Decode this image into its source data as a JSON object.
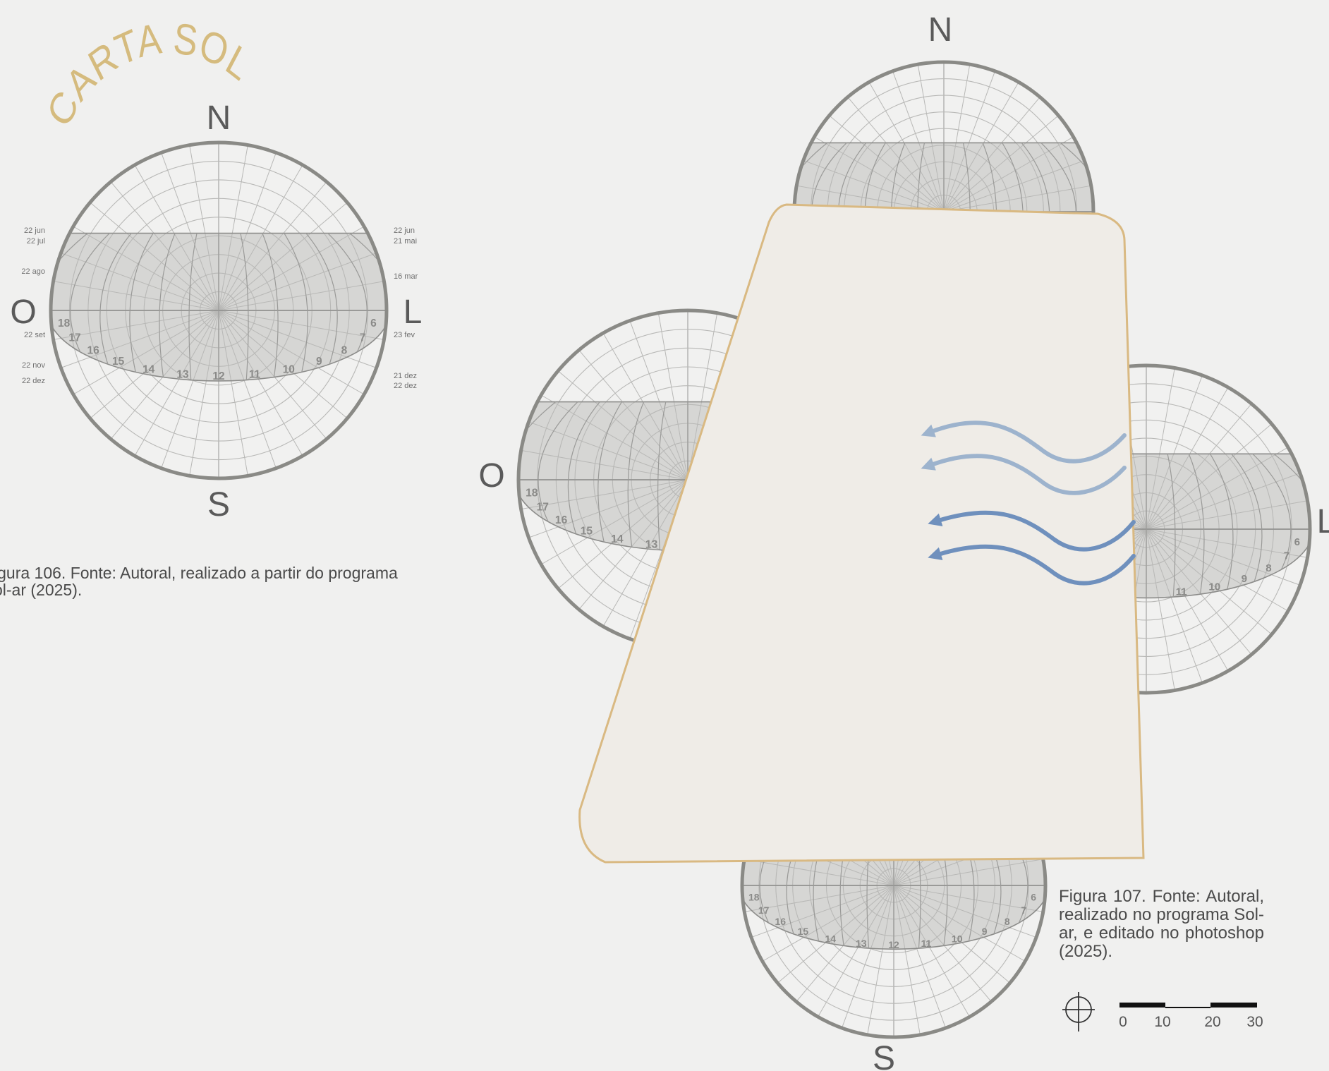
{
  "title": "CARTA SOLAR",
  "colors": {
    "background": "#f0f0ef",
    "title": "#d5bb7e",
    "chart_ring": "#8a8a86",
    "grid": "#b8b8b6",
    "shade": "#d6d6d4",
    "building_fill": "#efece7",
    "building_outline": "#d9b982",
    "wind_light": "#9db3cd",
    "wind_dark": "#6f90bd"
  },
  "left_chart": {
    "directions": {
      "north": "N",
      "south": "S",
      "west": "O",
      "east": "L"
    },
    "hours": [
      "18",
      "17",
      "16",
      "15",
      "14",
      "13",
      "12",
      "11",
      "10",
      "9",
      "8",
      "7",
      "6"
    ],
    "dates_left": [
      "22 jun",
      "22 jul",
      "22 ago",
      "22 set",
      "22 nov",
      "22 dez"
    ],
    "dates_right": [
      "22 jun",
      "21 mai",
      "16 mar",
      "23 fev",
      "21 dez",
      "22 dez"
    ],
    "caption": "igura 106. Fonte: Autoral, realizado a partir do programa\nol-ar (2025)."
  },
  "right_diagram": {
    "directions": {
      "north": "N",
      "south": "S",
      "west": "O",
      "east": "L"
    },
    "west_chart_hours": [
      "18",
      "17",
      "16",
      "15",
      "14",
      "13"
    ],
    "east_chart_hours": [
      "11",
      "10",
      "9",
      "8",
      "7",
      "6"
    ],
    "south_chart_hours": [
      "18",
      "17",
      "16",
      "15",
      "14",
      "13",
      "12",
      "11",
      "10",
      "9",
      "8",
      "7",
      "6"
    ],
    "wind_icon": "wind-arrows",
    "caption": "Figura 107. Fonte: Autoral, realizado no programa Sol-ar, e editado no photoshop (2025)."
  },
  "scale_bar": {
    "labels": [
      "0",
      "10",
      "20",
      "30"
    ],
    "north_icon": "north-arrow-icon"
  }
}
